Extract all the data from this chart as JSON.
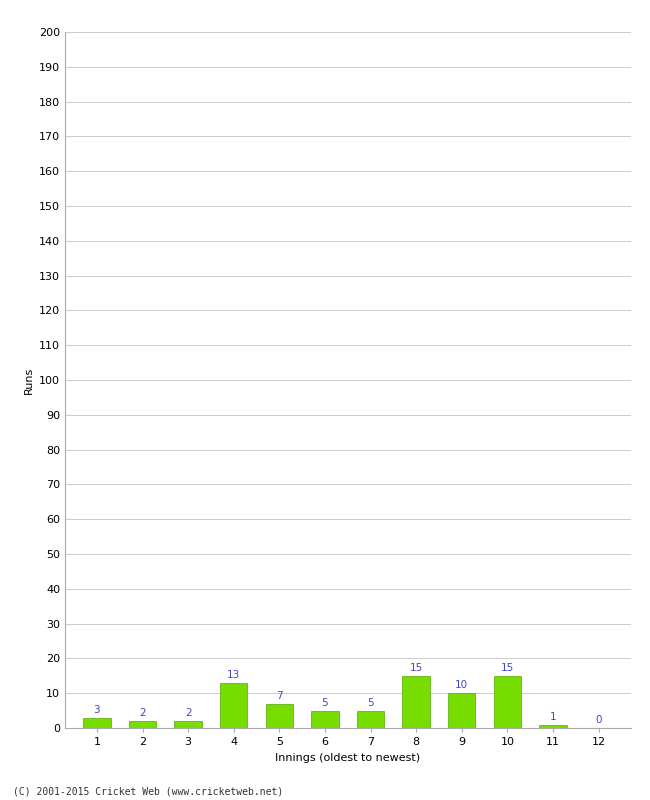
{
  "xlabel": "Innings (oldest to newest)",
  "ylabel": "Runs",
  "categories": [
    1,
    2,
    3,
    4,
    5,
    6,
    7,
    8,
    9,
    10,
    11,
    12
  ],
  "values": [
    3,
    2,
    2,
    13,
    7,
    5,
    5,
    15,
    10,
    15,
    1,
    0
  ],
  "bar_color": "#77dd00",
  "bar_edge_color": "#55aa00",
  "label_color": "#4444cc",
  "ylim": [
    0,
    200
  ],
  "yticks": [
    0,
    10,
    20,
    30,
    40,
    50,
    60,
    70,
    80,
    90,
    100,
    110,
    120,
    130,
    140,
    150,
    160,
    170,
    180,
    190,
    200
  ],
  "background_color": "#ffffff",
  "grid_color": "#cccccc",
  "footer": "(C) 2001-2015 Cricket Web (www.cricketweb.net)",
  "label_fontsize": 7.5,
  "axis_fontsize": 8,
  "ylabel_fontsize": 8,
  "xlabel_fontsize": 8
}
